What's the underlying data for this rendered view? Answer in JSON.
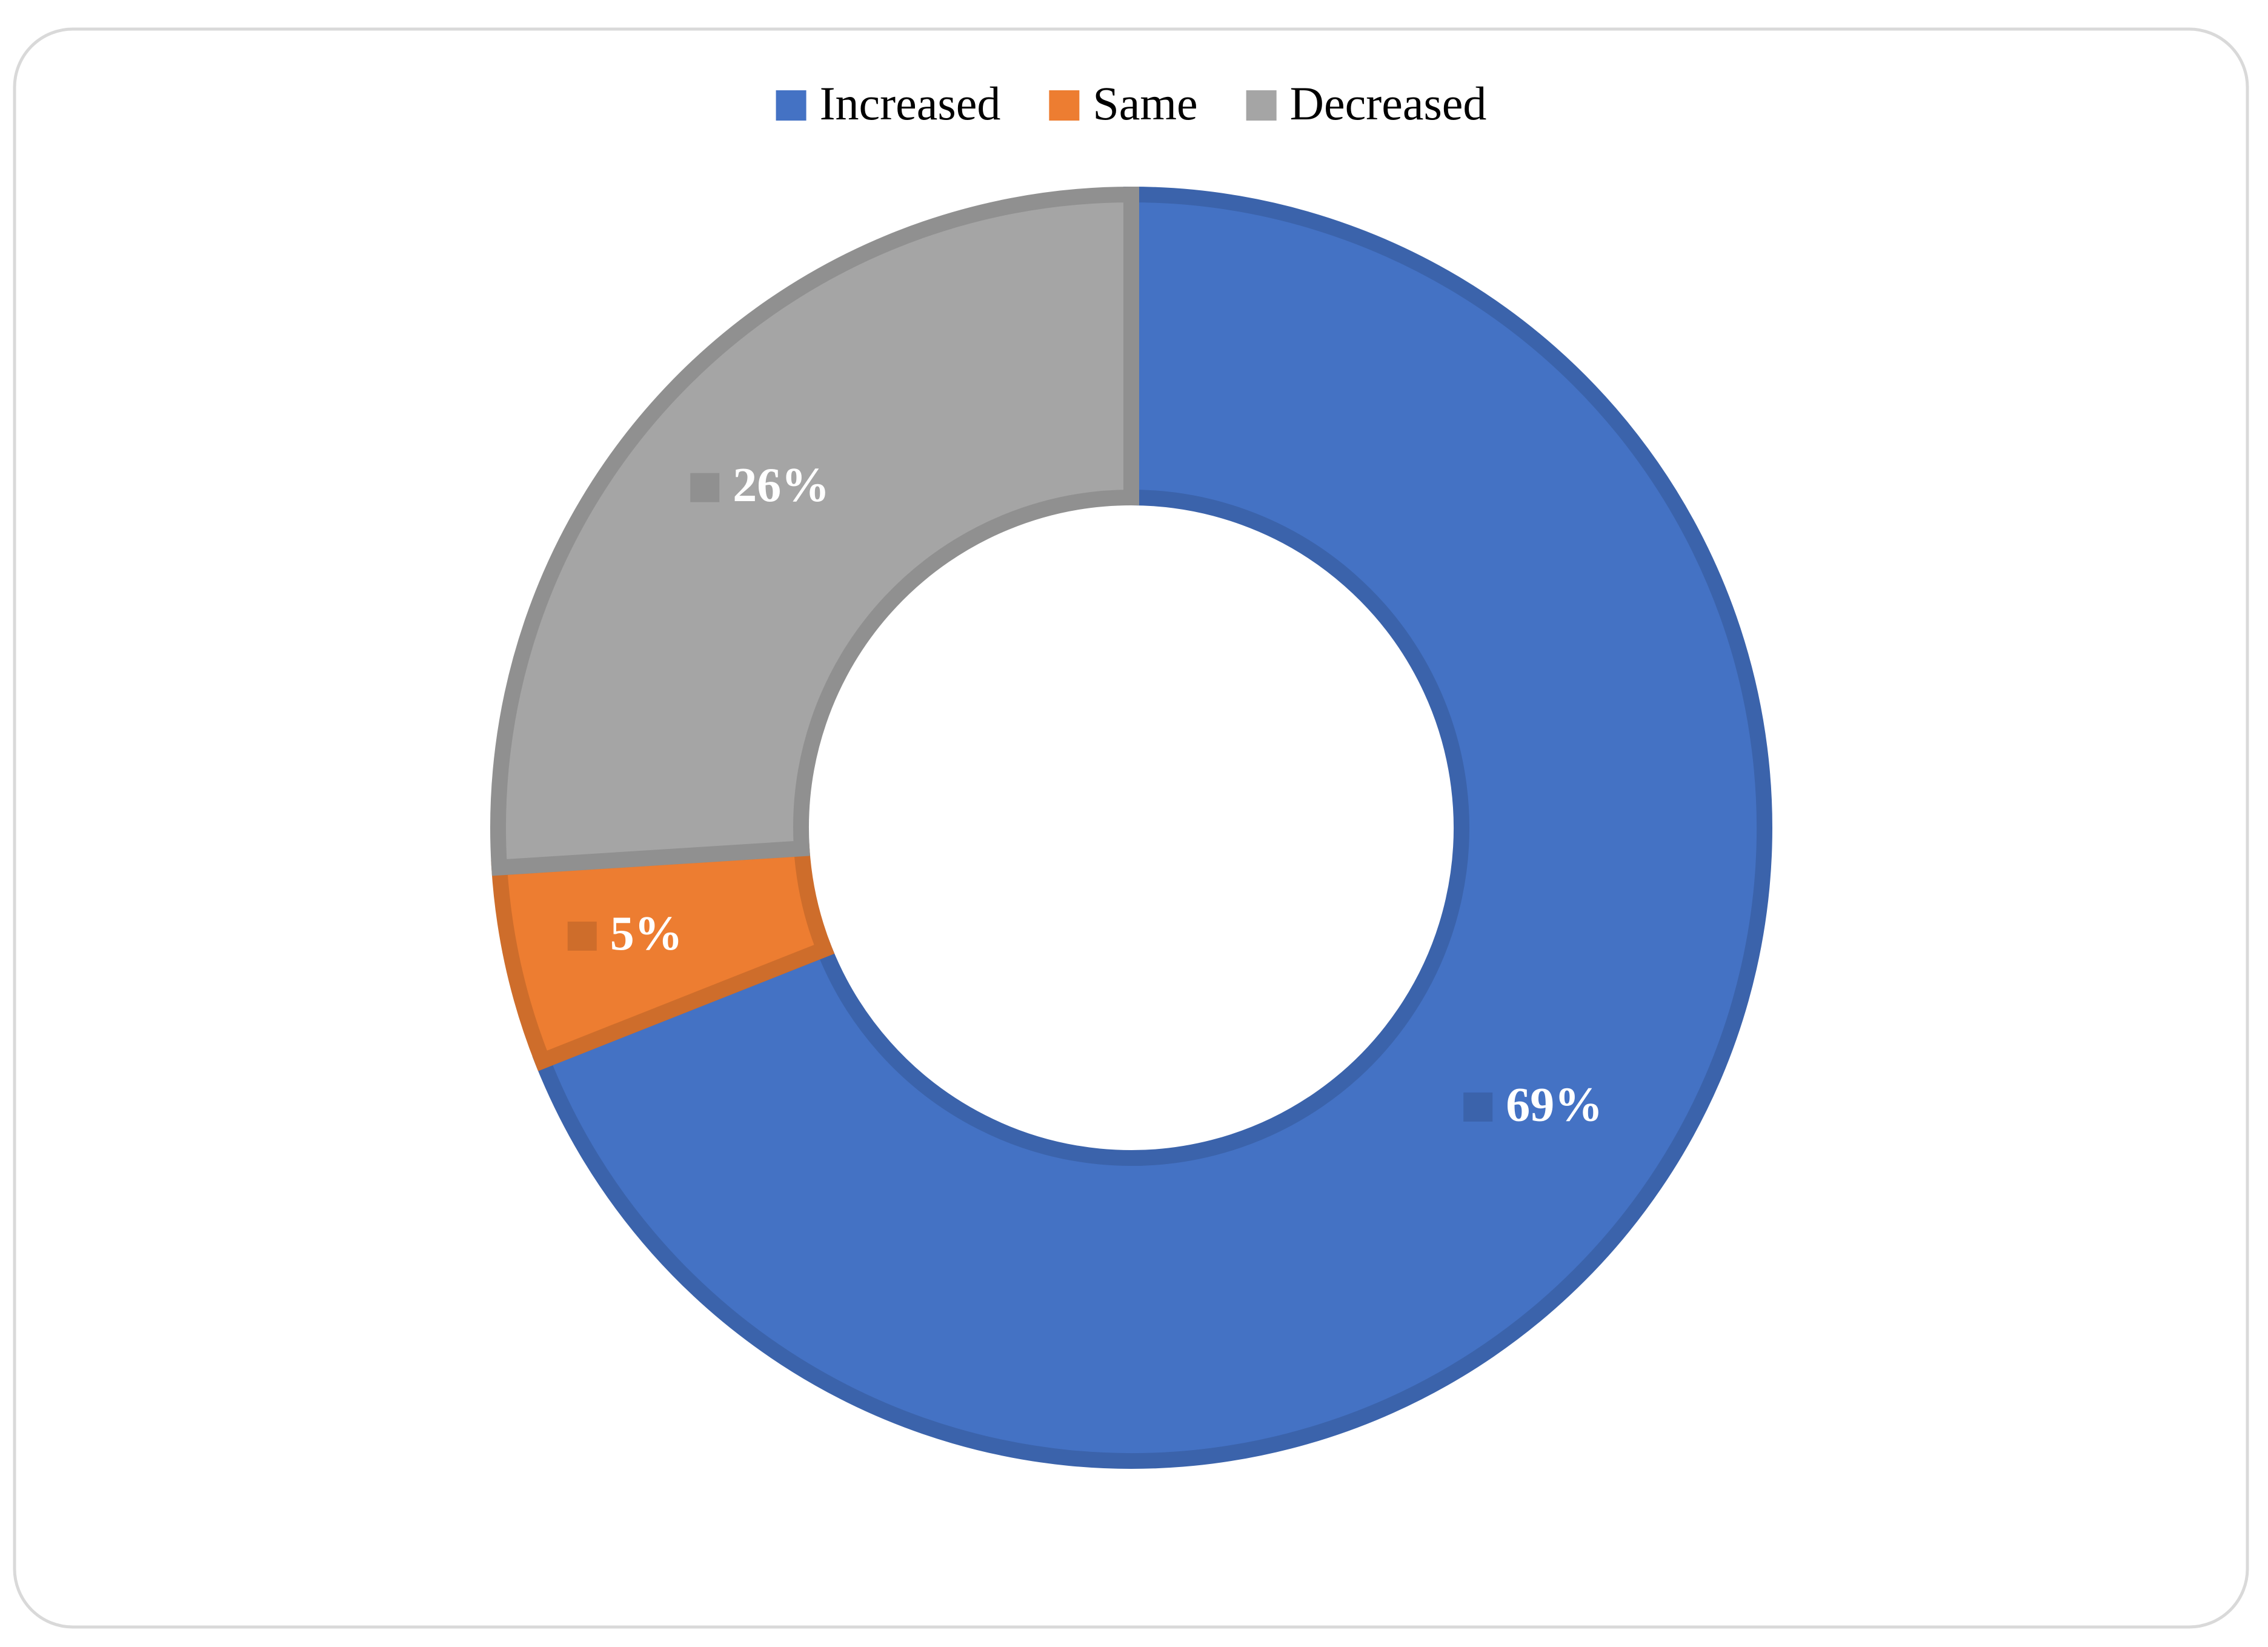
{
  "chart_data": {
    "type": "donut",
    "categories": [
      "Increased",
      "Same",
      "Decreased"
    ],
    "values": [
      69,
      5,
      26
    ],
    "value_labels": [
      "69%",
      "5%",
      "26%"
    ],
    "colors": [
      "#4472c4",
      "#ed7d31",
      "#a5a5a5"
    ],
    "legend": "top"
  }
}
